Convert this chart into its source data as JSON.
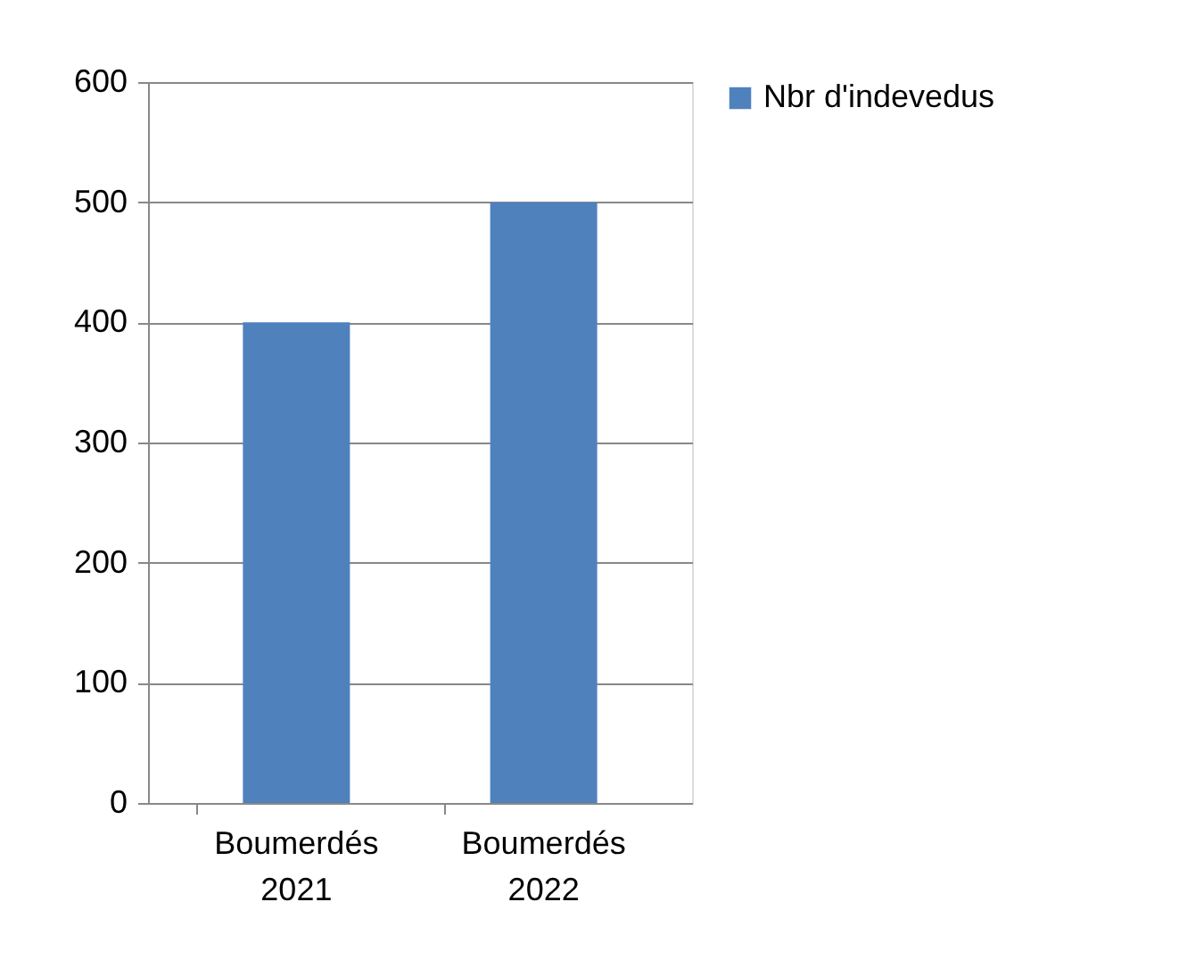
{
  "chart_data": {
    "type": "bar",
    "categories": [
      "Boumerdés 2021",
      "Boumerdés 2022"
    ],
    "series": [
      {
        "name": "Nbr d'indevedus",
        "color": "#4f81bd",
        "values": [
          400,
          500
        ]
      }
    ],
    "ylim": [
      0,
      600
    ],
    "yticks": [
      0,
      100,
      200,
      300,
      400,
      500,
      600
    ],
    "grid": "y",
    "legend": "right"
  }
}
